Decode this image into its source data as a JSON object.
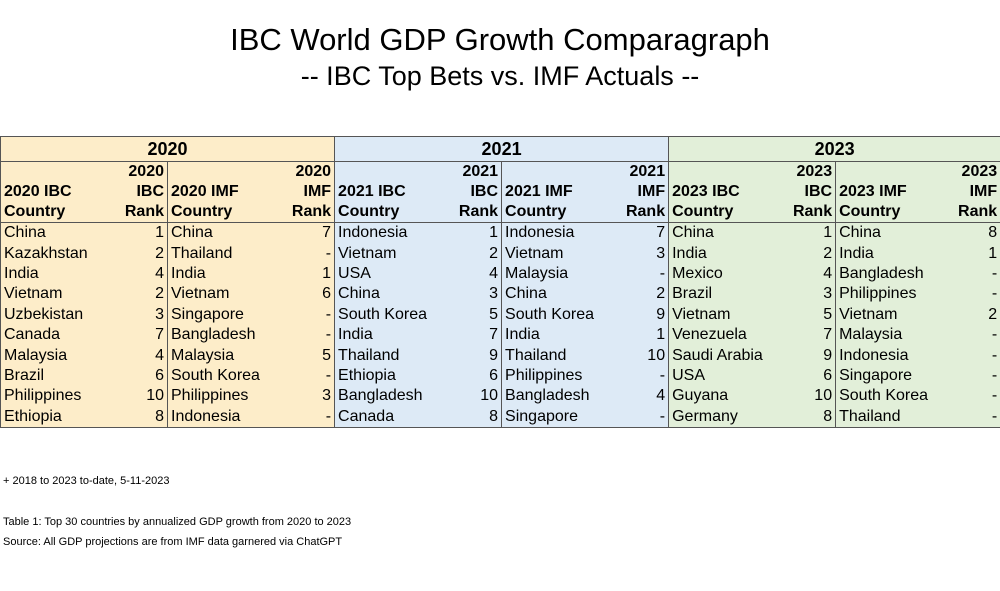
{
  "title": "IBC World GDP Growth Comparagraph",
  "subtitle": "-- IBC Top Bets vs. IMF Actuals --",
  "years": [
    {
      "year": "2020",
      "color": "#fdedc9",
      "ibc_country_header": [
        "",
        "",
        "2020 IBC",
        "Country"
      ],
      "ibc_rank_header": [
        "2020",
        "IBC",
        "Rank"
      ],
      "imf_country_header": [
        "2020 IMF",
        "Country"
      ],
      "imf_rank_header": [
        "2020",
        "IMF",
        "Rank"
      ],
      "rows": [
        {
          "ibc_country": "China",
          "ibc_rank": "1",
          "imf_country": "China",
          "imf_rank": "7"
        },
        {
          "ibc_country": "Kazakhstan",
          "ibc_rank": "2",
          "imf_country": "Thailand",
          "imf_rank": "-"
        },
        {
          "ibc_country": "India",
          "ibc_rank": "4",
          "imf_country": "India",
          "imf_rank": "1"
        },
        {
          "ibc_country": "Vietnam",
          "ibc_rank": "2",
          "imf_country": "Vietnam",
          "imf_rank": "6"
        },
        {
          "ibc_country": "Uzbekistan",
          "ibc_rank": "3",
          "imf_country": "Singapore",
          "imf_rank": "-"
        },
        {
          "ibc_country": "Canada",
          "ibc_rank": "7",
          "imf_country": "Bangladesh",
          "imf_rank": "-"
        },
        {
          "ibc_country": "Malaysia",
          "ibc_rank": "4",
          "imf_country": "Malaysia",
          "imf_rank": "5"
        },
        {
          "ibc_country": "Brazil",
          "ibc_rank": "6",
          "imf_country": "South Korea",
          "imf_rank": "-"
        },
        {
          "ibc_country": "Philippines",
          "ibc_rank": "10",
          "imf_country": "Philippines",
          "imf_rank": "3"
        },
        {
          "ibc_country": "Ethiopia",
          "ibc_rank": "8",
          "imf_country": "Indonesia",
          "imf_rank": "-"
        }
      ]
    },
    {
      "year": "2021",
      "color": "#ddeaf6",
      "ibc_rank_header": [
        "2021",
        "IBC",
        "Rank"
      ],
      "imf_rank_header": [
        "2021",
        "IMF",
        "Rank"
      ],
      "ibc_country_header": [
        "2021 IBC",
        "Country"
      ],
      "imf_country_header": [
        "2021 IMF",
        "Country"
      ],
      "rows": [
        {
          "ibc_country": "Indonesia",
          "ibc_rank": "1",
          "imf_country": "Indonesia",
          "imf_rank": "7"
        },
        {
          "ibc_country": "Vietnam",
          "ibc_rank": "2",
          "imf_country": "Vietnam",
          "imf_rank": "3"
        },
        {
          "ibc_country": "USA",
          "ibc_rank": "4",
          "imf_country": "Malaysia",
          "imf_rank": "-"
        },
        {
          "ibc_country": "China",
          "ibc_rank": "3",
          "imf_country": "China",
          "imf_rank": "2"
        },
        {
          "ibc_country": "South Korea",
          "ibc_rank": "5",
          "imf_country": "South Korea",
          "imf_rank": "9"
        },
        {
          "ibc_country": "India",
          "ibc_rank": "7",
          "imf_country": "India",
          "imf_rank": "1"
        },
        {
          "ibc_country": "Thailand",
          "ibc_rank": "9",
          "imf_country": "Thailand",
          "imf_rank": "10"
        },
        {
          "ibc_country": "Ethiopia",
          "ibc_rank": "6",
          "imf_country": "Philippines",
          "imf_rank": "-"
        },
        {
          "ibc_country": "Bangladesh",
          "ibc_rank": "10",
          "imf_country": "Bangladesh",
          "imf_rank": "4"
        },
        {
          "ibc_country": "Canada",
          "ibc_rank": "8",
          "imf_country": "Singapore",
          "imf_rank": "-"
        }
      ]
    },
    {
      "year": "2023",
      "color": "#e2efd9",
      "ibc_rank_header": [
        "2023",
        "IBC",
        "Rank"
      ],
      "imf_rank_header": [
        "2023",
        "IMF",
        "Rank"
      ],
      "ibc_country_header": [
        "2023 IBC",
        "Country"
      ],
      "imf_country_header": [
        "2023 IMF",
        "Country"
      ],
      "rows": [
        {
          "ibc_country": "China",
          "ibc_rank": "1",
          "imf_country": "China",
          "imf_rank": "8"
        },
        {
          "ibc_country": "India",
          "ibc_rank": "2",
          "imf_country": "India",
          "imf_rank": "1"
        },
        {
          "ibc_country": "Mexico",
          "ibc_rank": "4",
          "imf_country": "Bangladesh",
          "imf_rank": "-"
        },
        {
          "ibc_country": "Brazil",
          "ibc_rank": "3",
          "imf_country": "Philippines",
          "imf_rank": "-"
        },
        {
          "ibc_country": "Vietnam",
          "ibc_rank": "5",
          "imf_country": "Vietnam",
          "imf_rank": "2"
        },
        {
          "ibc_country": "Venezuela",
          "ibc_rank": "7",
          "imf_country": "Malaysia",
          "imf_rank": "-"
        },
        {
          "ibc_country": "Saudi Arabia",
          "ibc_rank": "9",
          "imf_country": "Indonesia",
          "imf_rank": "-"
        },
        {
          "ibc_country": "USA",
          "ibc_rank": "6",
          "imf_country": "Singapore",
          "imf_rank": "-"
        },
        {
          "ibc_country": "Guyana",
          "ibc_rank": "10",
          "imf_country": "South Korea",
          "imf_rank": "-"
        },
        {
          "ibc_country": "Germany",
          "ibc_rank": "8",
          "imf_country": "Thailand",
          "imf_rank": "-"
        }
      ]
    }
  ],
  "footnote": "+ 2018 to 2023 to-date, 5-11-2023",
  "caption": "Table 1: Top 30 countries by annualized GDP growth from 2020 to 2023",
  "source": "Source:  All GDP projections are from IMF data garnered via ChatGPT"
}
